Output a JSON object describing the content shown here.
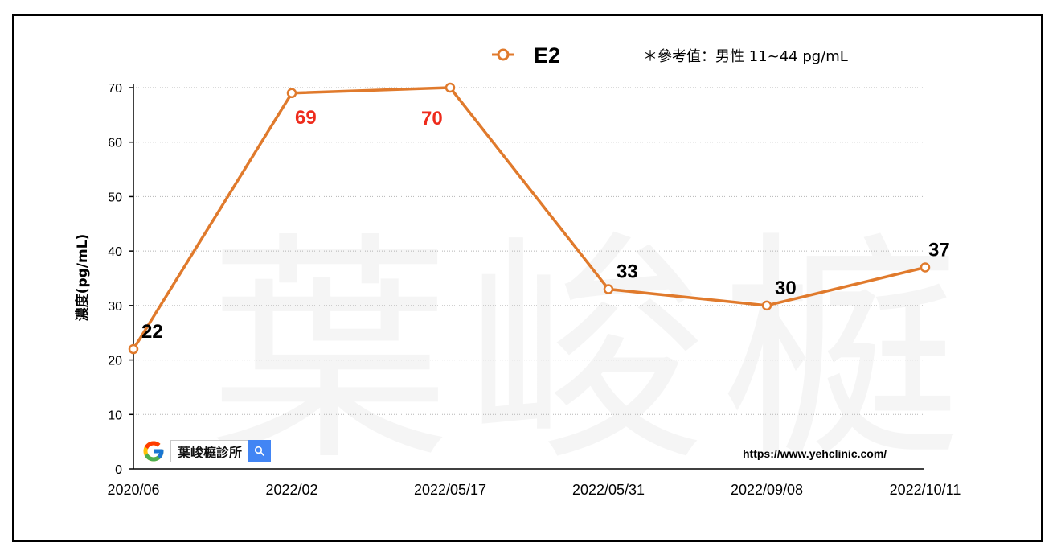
{
  "chart_data": {
    "type": "line",
    "categories": [
      "2020/06",
      "2022/02",
      "2022/05/17",
      "2022/05/31",
      "2022/09/08",
      "2022/10/11"
    ],
    "series": [
      {
        "name": "E2",
        "values": [
          22,
          69,
          70,
          33,
          30,
          37
        ],
        "color": "#e07a2c",
        "label_colors": [
          "#000000",
          "#ee2b1c",
          "#ee2b1c",
          "#000000",
          "#000000",
          "#000000"
        ]
      }
    ],
    "annotation": "＊參考值：男性 11~44 pg/mL",
    "ylabel": "濃度(pg/mL)",
    "xlabel": "",
    "ylim": [
      0,
      70
    ],
    "yticks": [
      0,
      10,
      20,
      30,
      40,
      50,
      60,
      70
    ],
    "grid": true,
    "legend": "top-center"
  },
  "watermark": "葉峻榳",
  "search_badge": {
    "text": "葉峻榳診所",
    "logo_icon": "google-g-icon",
    "button_icon": "search-icon"
  },
  "website": "https://www.yehclinic.com/"
}
